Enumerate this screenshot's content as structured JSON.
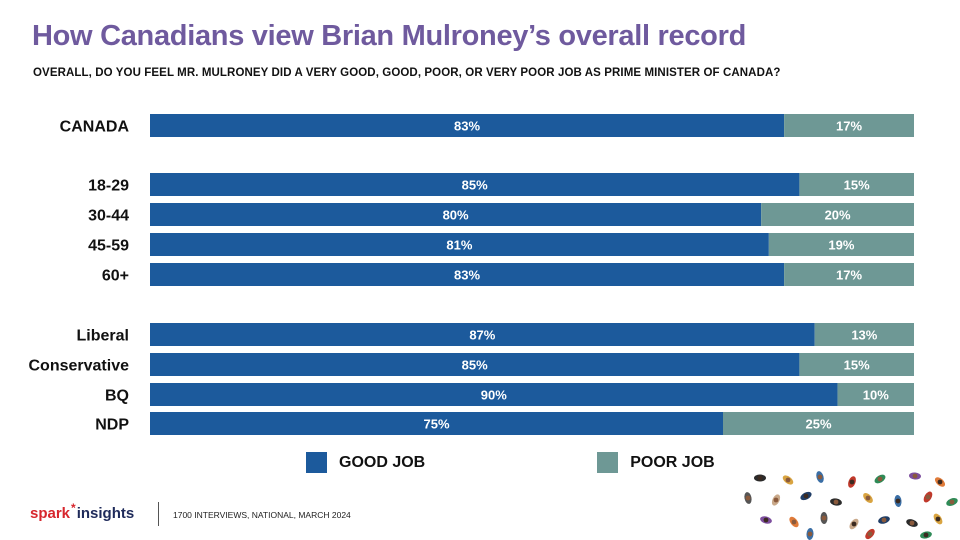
{
  "title": "How Canadians view Brian Mulroney’s overall record",
  "subtitle": "OVERALL, DO YOU FEEL MR. MULRONEY DID A VERY GOOD, GOOD, POOR, OR VERY POOR JOB AS PRIME MINISTER OF CANADA?",
  "colors": {
    "good": "#1c5a9c",
    "poor": "#6e9895",
    "title": "#6f5a9e"
  },
  "chart_data": {
    "type": "bar",
    "orientation": "horizontal",
    "stacked": true,
    "percent": true,
    "categories": [
      "CANADA",
      "18-29",
      "30-44",
      "45-59",
      "60+",
      "Liberal",
      "Conservative",
      "BQ",
      "NDP"
    ],
    "groups": [
      [
        "CANADA"
      ],
      [
        "18-29",
        "30-44",
        "45-59",
        "60+"
      ],
      [
        "Liberal",
        "Conservative",
        "BQ",
        "NDP"
      ]
    ],
    "series": [
      {
        "name": "GOOD JOB",
        "values": [
          83,
          85,
          80,
          81,
          83,
          87,
          85,
          90,
          75
        ],
        "labels": [
          "83%",
          "85%",
          "80%",
          "81%",
          "83%",
          "87%",
          "85%",
          "90%",
          "75%"
        ]
      },
      {
        "name": "POOR JOB",
        "values": [
          17,
          15,
          20,
          19,
          17,
          13,
          15,
          10,
          25
        ],
        "labels": [
          "17%",
          "15%",
          "20%",
          "19%",
          "17%",
          "13%",
          "15%",
          "10%",
          "25%"
        ]
      }
    ],
    "xlim": [
      0,
      100
    ],
    "legend": "bottom",
    "grid": false
  },
  "legend": {
    "good": "GOOD JOB",
    "poor": "POOR JOB"
  },
  "footer": {
    "brand_left": "spark",
    "brand_right": "insights",
    "note": "1700 INTERVIEWS, NATIONAL, MARCH 2024"
  }
}
